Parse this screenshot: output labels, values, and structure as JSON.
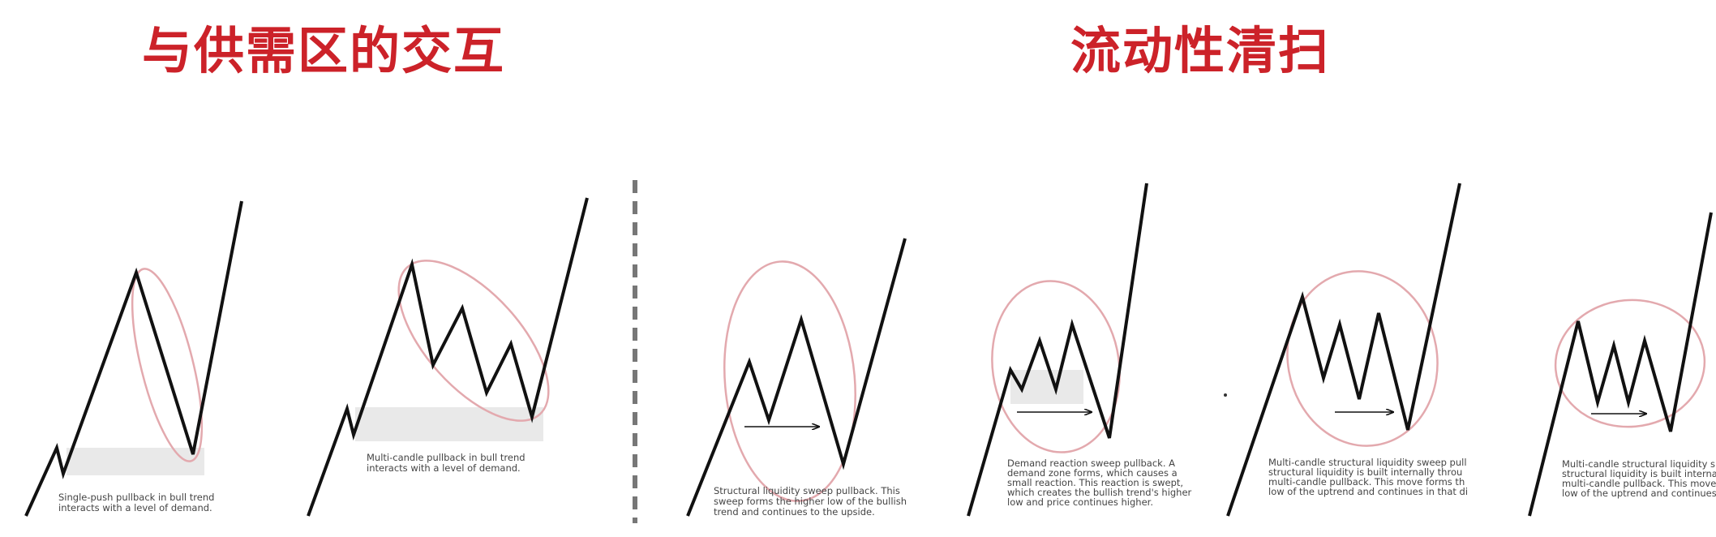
{
  "headings": {
    "left": "与供需区的交互",
    "right": "流动性清扫"
  },
  "colors": {
    "heading_red": "#cc2229",
    "ellipse_pink": "#e3a9ae",
    "zone_gray": "#e9e9e9",
    "line_black": "#111111",
    "divider_gray": "#777777"
  },
  "panels": [
    {
      "caption_lines": [
        "Single-push pullback in bull trend",
        "interacts with a level of demand."
      ]
    },
    {
      "caption_lines": [
        "Multi-candle pullback in bull trend",
        "interacts with a level of demand."
      ]
    },
    {
      "caption_lines": [
        "Structural liquidity sweep pullback. This",
        "sweep forms the higher low of the bullish",
        "trend and continues to the upside."
      ]
    },
    {
      "caption_lines": [
        "Demand reaction sweep pullback. A",
        "demand zone forms, which causes a",
        "small reaction. This reaction is swept,",
        "which creates the bullish trend's higher",
        "low and price continues higher."
      ]
    },
    {
      "caption_lines": [
        "Multi-candle structural liquidity sweep pull",
        "structural liquidity is built internally throu",
        "multi-candle pullback. This move forms th",
        "low of the uptrend and continues in that di"
      ]
    },
    {
      "caption_lines": [
        "Multi-candle structural liquidity s",
        "structural liquidity is built interna",
        "multi-candle pullback. This move",
        "low of the uptrend and continues"
      ]
    }
  ]
}
